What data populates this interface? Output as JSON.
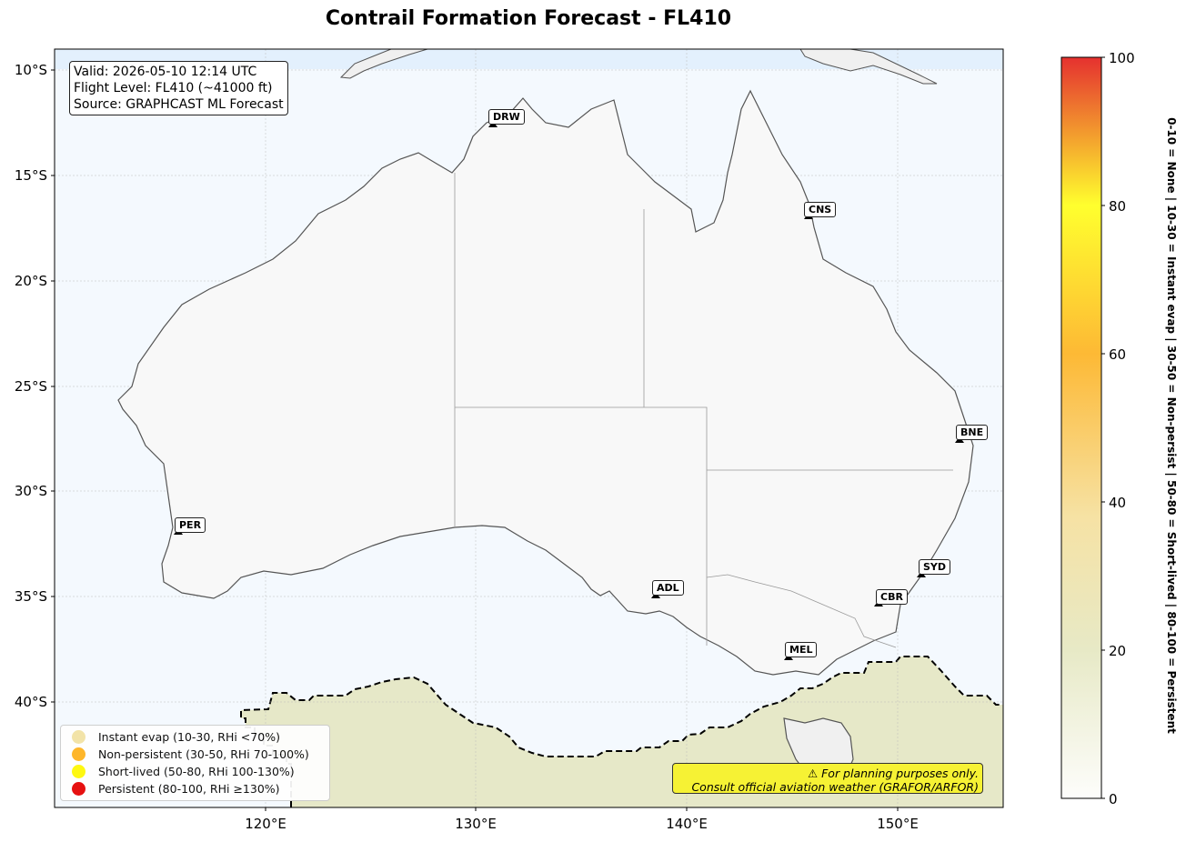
{
  "title": "Contrail Formation Forecast - FL410",
  "info": {
    "valid": "Valid: 2026-05-10 12:14 UTC",
    "flight_level": "Flight Level: FL410 (~41000 ft)",
    "source": "Source: GRAPHCAST ML Forecast"
  },
  "axes": {
    "y_ticks": [
      "10°S",
      "15°S",
      "20°S",
      "25°S",
      "30°S",
      "35°S",
      "40°S"
    ],
    "x_ticks": [
      "120°E",
      "130°E",
      "140°E",
      "150°E"
    ]
  },
  "cities": [
    {
      "code": "DRW",
      "lon": 130.84,
      "lat": -12.46
    },
    {
      "code": "CNS",
      "lon": 145.77,
      "lat": -16.92
    },
    {
      "code": "BNE",
      "lon": 153.02,
      "lat": -27.47
    },
    {
      "code": "PER",
      "lon": 115.86,
      "lat": -31.95
    },
    {
      "code": "ADL",
      "lon": 138.6,
      "lat": -34.93
    },
    {
      "code": "SYD",
      "lon": 151.21,
      "lat": -33.87
    },
    {
      "code": "CBR",
      "lon": 149.13,
      "lat": -35.28
    },
    {
      "code": "MEL",
      "lon": 144.96,
      "lat": -37.81
    }
  ],
  "legend": [
    {
      "label": "Instant evap (10-30, RHi <70%)",
      "color": "#f2e2a2"
    },
    {
      "label": "Non-persistent (30-50, RHi 70-100%)",
      "color": "#ffb21a"
    },
    {
      "label": "Short-lived (50-80, RHi 100-130%)",
      "color": "#fff800"
    },
    {
      "label": "Persistent (80-100, RHi ≥130%)",
      "color": "#e50000"
    }
  ],
  "disclaimer": {
    "line1": "⚠ For planning purposes only.",
    "line2": "Consult official aviation weather (GRAFOR/ARFOR)"
  },
  "colorbar": {
    "ticks": [
      "0",
      "20",
      "40",
      "60",
      "80",
      "100"
    ],
    "caption": "0-10 = None  |  10-30 = Instant evap  |  30-50 = Non-persist  |  50-80 = Short-lived  |  80-100 = Persistent"
  },
  "colors": {
    "ocean": "#f4f9fe",
    "land": "#f8f8f8",
    "contrail_zone": "#e6e8c8"
  }
}
